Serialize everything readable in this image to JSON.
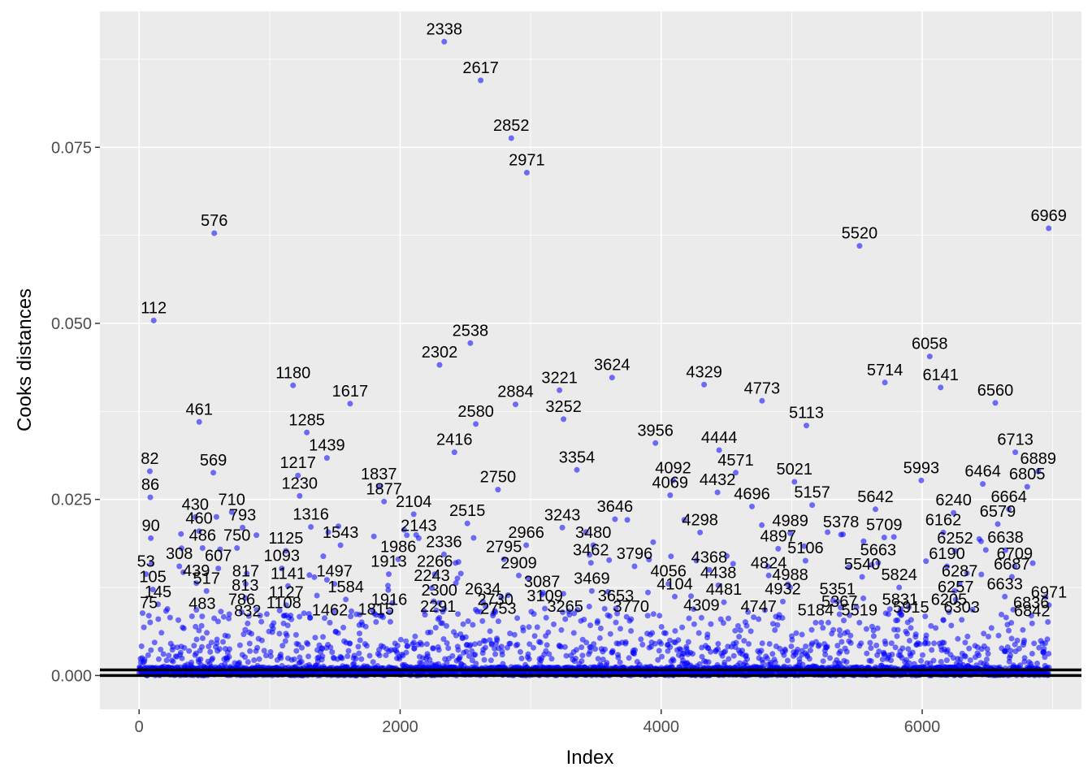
{
  "chart_data": {
    "type": "scatter",
    "title": "",
    "xlabel": "Index",
    "ylabel": "Cooks distances",
    "xlim": [
      -300,
      7220
    ],
    "ylim": [
      -0.0048,
      0.0943
    ],
    "x_ticks": [
      0,
      2000,
      4000,
      6000
    ],
    "x_tick_labels": [
      "0",
      "2000",
      "4000",
      "6000"
    ],
    "y_ticks": [
      0.0,
      0.025,
      0.05,
      0.075
    ],
    "y_tick_labels": [
      "0.000",
      "0.025",
      "0.050",
      "0.075"
    ],
    "grid": true,
    "point_color": "#0000FF",
    "threshold_lines": [
      0.0,
      0.0008
    ],
    "n_points": 6971,
    "labeled_points": [
      {
        "x": 2338,
        "y": 0.09,
        "label": "2338"
      },
      {
        "x": 2617,
        "y": 0.0845,
        "label": "2617"
      },
      {
        "x": 2852,
        "y": 0.0763,
        "label": "2852"
      },
      {
        "x": 2971,
        "y": 0.0714,
        "label": "2971"
      },
      {
        "x": 576,
        "y": 0.0628,
        "label": "576"
      },
      {
        "x": 6969,
        "y": 0.0635,
        "label": "6969"
      },
      {
        "x": 5520,
        "y": 0.061,
        "label": "5520"
      },
      {
        "x": 112,
        "y": 0.0504,
        "label": "112"
      },
      {
        "x": 2538,
        "y": 0.0472,
        "label": "2538"
      },
      {
        "x": 2302,
        "y": 0.0441,
        "label": "2302"
      },
      {
        "x": 6058,
        "y": 0.0453,
        "label": "6058"
      },
      {
        "x": 3624,
        "y": 0.0423,
        "label": "3624"
      },
      {
        "x": 3221,
        "y": 0.0405,
        "label": "3221"
      },
      {
        "x": 5714,
        "y": 0.0416,
        "label": "5714"
      },
      {
        "x": 1180,
        "y": 0.0412,
        "label": "1180"
      },
      {
        "x": 4329,
        "y": 0.0413,
        "label": "4329"
      },
      {
        "x": 6141,
        "y": 0.0409,
        "label": "6141"
      },
      {
        "x": 4773,
        "y": 0.039,
        "label": "4773"
      },
      {
        "x": 1617,
        "y": 0.0386,
        "label": "1617"
      },
      {
        "x": 2884,
        "y": 0.0385,
        "label": "2884"
      },
      {
        "x": 6560,
        "y": 0.0387,
        "label": "6560"
      },
      {
        "x": 3252,
        "y": 0.0364,
        "label": "3252"
      },
      {
        "x": 461,
        "y": 0.036,
        "label": "461"
      },
      {
        "x": 2580,
        "y": 0.0357,
        "label": "2580"
      },
      {
        "x": 5113,
        "y": 0.0355,
        "label": "5113"
      },
      {
        "x": 1285,
        "y": 0.0345,
        "label": "1285"
      },
      {
        "x": 3956,
        "y": 0.033,
        "label": "3956"
      },
      {
        "x": 4444,
        "y": 0.032,
        "label": "4444"
      },
      {
        "x": 6713,
        "y": 0.0317,
        "label": "6713"
      },
      {
        "x": 2416,
        "y": 0.0317,
        "label": "2416"
      },
      {
        "x": 1439,
        "y": 0.0309,
        "label": "1439"
      },
      {
        "x": 3354,
        "y": 0.0292,
        "label": "3354"
      },
      {
        "x": 4571,
        "y": 0.0288,
        "label": "4571"
      },
      {
        "x": 6889,
        "y": 0.029,
        "label": "6889"
      },
      {
        "x": 82,
        "y": 0.029,
        "label": "82"
      },
      {
        "x": 569,
        "y": 0.0288,
        "label": "569"
      },
      {
        "x": 1217,
        "y": 0.0284,
        "label": "1217"
      },
      {
        "x": 4092,
        "y": 0.0277,
        "label": "4092"
      },
      {
        "x": 5021,
        "y": 0.0275,
        "label": "5021"
      },
      {
        "x": 5993,
        "y": 0.0277,
        "label": "5993"
      },
      {
        "x": 1837,
        "y": 0.0268,
        "label": "1837"
      },
      {
        "x": 6464,
        "y": 0.0272,
        "label": "6464"
      },
      {
        "x": 6805,
        "y": 0.0268,
        "label": "6805"
      },
      {
        "x": 4432,
        "y": 0.026,
        "label": "4432"
      },
      {
        "x": 2750,
        "y": 0.0264,
        "label": "2750"
      },
      {
        "x": 1230,
        "y": 0.0255,
        "label": "1230"
      },
      {
        "x": 4069,
        "y": 0.0256,
        "label": "4069"
      },
      {
        "x": 86,
        "y": 0.0253,
        "label": "86"
      },
      {
        "x": 1877,
        "y": 0.0247,
        "label": "1877"
      },
      {
        "x": 4696,
        "y": 0.024,
        "label": "4696"
      },
      {
        "x": 5157,
        "y": 0.0242,
        "label": "5157"
      },
      {
        "x": 710,
        "y": 0.0232,
        "label": "710"
      },
      {
        "x": 5642,
        "y": 0.0236,
        "label": "5642"
      },
      {
        "x": 6664,
        "y": 0.0236,
        "label": "6664"
      },
      {
        "x": 6240,
        "y": 0.0231,
        "label": "6240"
      },
      {
        "x": 2104,
        "y": 0.0229,
        "label": "2104"
      },
      {
        "x": 430,
        "y": 0.0225,
        "label": "430"
      },
      {
        "x": 3646,
        "y": 0.0222,
        "label": "3646"
      },
      {
        "x": 2515,
        "y": 0.0216,
        "label": "2515"
      },
      {
        "x": 1316,
        "y": 0.0211,
        "label": "1316"
      },
      {
        "x": 793,
        "y": 0.021,
        "label": "793"
      },
      {
        "x": 6579,
        "y": 0.0215,
        "label": "6579"
      },
      {
        "x": 3243,
        "y": 0.021,
        "label": "3243"
      },
      {
        "x": 460,
        "y": 0.0205,
        "label": "460"
      },
      {
        "x": 4298,
        "y": 0.0203,
        "label": "4298"
      },
      {
        "x": 4989,
        "y": 0.0202,
        "label": "4989"
      },
      {
        "x": 5378,
        "y": 0.02,
        "label": "5378"
      },
      {
        "x": 6162,
        "y": 0.0203,
        "label": "6162"
      },
      {
        "x": 2143,
        "y": 0.0195,
        "label": "2143"
      },
      {
        "x": 5709,
        "y": 0.0196,
        "label": "5709"
      },
      {
        "x": 90,
        "y": 0.0195,
        "label": "90"
      },
      {
        "x": 3480,
        "y": 0.0185,
        "label": "3480"
      },
      {
        "x": 2966,
        "y": 0.0185,
        "label": "2966"
      },
      {
        "x": 1543,
        "y": 0.0185,
        "label": "1543"
      },
      {
        "x": 486,
        "y": 0.0181,
        "label": "486"
      },
      {
        "x": 750,
        "y": 0.0181,
        "label": "750"
      },
      {
        "x": 4897,
        "y": 0.018,
        "label": "4897"
      },
      {
        "x": 1125,
        "y": 0.0177,
        "label": "1125"
      },
      {
        "x": 6638,
        "y": 0.0178,
        "label": "6638"
      },
      {
        "x": 6252,
        "y": 0.0177,
        "label": "6252"
      },
      {
        "x": 2336,
        "y": 0.0172,
        "label": "2336"
      },
      {
        "x": 1986,
        "y": 0.0165,
        "label": "1986"
      },
      {
        "x": 2795,
        "y": 0.0165,
        "label": "2795"
      },
      {
        "x": 5106,
        "y": 0.0163,
        "label": "5106"
      },
      {
        "x": 3462,
        "y": 0.016,
        "label": "3462"
      },
      {
        "x": 5663,
        "y": 0.016,
        "label": "5663"
      },
      {
        "x": 3796,
        "y": 0.0155,
        "label": "3796"
      },
      {
        "x": 6709,
        "y": 0.0155,
        "label": "6709"
      },
      {
        "x": 308,
        "y": 0.0155,
        "label": "308"
      },
      {
        "x": 6190,
        "y": 0.0155,
        "label": "6190"
      },
      {
        "x": 607,
        "y": 0.0152,
        "label": "607"
      },
      {
        "x": 1093,
        "y": 0.0152,
        "label": "1093"
      },
      {
        "x": 4368,
        "y": 0.015,
        "label": "4368"
      },
      {
        "x": 53,
        "y": 0.0144,
        "label": "53"
      },
      {
        "x": 2266,
        "y": 0.0144,
        "label": "2266"
      },
      {
        "x": 1913,
        "y": 0.0144,
        "label": "1913"
      },
      {
        "x": 4824,
        "y": 0.0142,
        "label": "4824"
      },
      {
        "x": 2909,
        "y": 0.0142,
        "label": "2909"
      },
      {
        "x": 5540,
        "y": 0.014,
        "label": "5540"
      },
      {
        "x": 6687,
        "y": 0.014,
        "label": "6687"
      },
      {
        "x": 439,
        "y": 0.0131,
        "label": "439"
      },
      {
        "x": 6287,
        "y": 0.013,
        "label": "6287"
      },
      {
        "x": 817,
        "y": 0.013,
        "label": "817"
      },
      {
        "x": 1497,
        "y": 0.013,
        "label": "1497"
      },
      {
        "x": 4056,
        "y": 0.013,
        "label": "4056"
      },
      {
        "x": 4438,
        "y": 0.0128,
        "label": "4438"
      },
      {
        "x": 1141,
        "y": 0.0127,
        "label": "1141"
      },
      {
        "x": 4988,
        "y": 0.0125,
        "label": "4988"
      },
      {
        "x": 2243,
        "y": 0.0124,
        "label": "2243"
      },
      {
        "x": 5824,
        "y": 0.0125,
        "label": "5824"
      },
      {
        "x": 105,
        "y": 0.0122,
        "label": "105"
      },
      {
        "x": 517,
        "y": 0.012,
        "label": "517"
      },
      {
        "x": 3469,
        "y": 0.012,
        "label": "3469"
      },
      {
        "x": 3087,
        "y": 0.0115,
        "label": "3087"
      },
      {
        "x": 4104,
        "y": 0.0112,
        "label": "4104"
      },
      {
        "x": 6633,
        "y": 0.0112,
        "label": "6633"
      },
      {
        "x": 813,
        "y": 0.011,
        "label": "813"
      },
      {
        "x": 6257,
        "y": 0.0108,
        "label": "6257"
      },
      {
        "x": 1584,
        "y": 0.0108,
        "label": "1584"
      },
      {
        "x": 4932,
        "y": 0.0105,
        "label": "4932"
      },
      {
        "x": 2634,
        "y": 0.0105,
        "label": "2634"
      },
      {
        "x": 4481,
        "y": 0.0104,
        "label": "4481"
      },
      {
        "x": 5351,
        "y": 0.0105,
        "label": "5351"
      },
      {
        "x": 2300,
        "y": 0.0103,
        "label": "2300"
      },
      {
        "x": 145,
        "y": 0.0101,
        "label": "145"
      },
      {
        "x": 1127,
        "y": 0.01,
        "label": "1127"
      },
      {
        "x": 6971,
        "y": 0.01,
        "label": "6971"
      },
      {
        "x": 3653,
        "y": 0.0095,
        "label": "3653"
      },
      {
        "x": 3109,
        "y": 0.0095,
        "label": "3109"
      },
      {
        "x": 786,
        "y": 0.009,
        "label": "786"
      },
      {
        "x": 2730,
        "y": 0.009,
        "label": "2730"
      },
      {
        "x": 1916,
        "y": 0.009,
        "label": "1916"
      },
      {
        "x": 5831,
        "y": 0.009,
        "label": "5831"
      },
      {
        "x": 6205,
        "y": 0.009,
        "label": "6205"
      },
      {
        "x": 5367,
        "y": 0.0087,
        "label": "5367"
      },
      {
        "x": 1108,
        "y": 0.0085,
        "label": "1108"
      },
      {
        "x": 6836,
        "y": 0.0085,
        "label": "6836"
      },
      {
        "x": 75,
        "y": 0.0085,
        "label": "75"
      },
      {
        "x": 483,
        "y": 0.0084,
        "label": "483"
      },
      {
        "x": 4309,
        "y": 0.0082,
        "label": "4309"
      },
      {
        "x": 2291,
        "y": 0.008,
        "label": "2291"
      },
      {
        "x": 3265,
        "y": 0.008,
        "label": "3265"
      },
      {
        "x": 3770,
        "y": 0.008,
        "label": "3770"
      },
      {
        "x": 4747,
        "y": 0.008,
        "label": "4747"
      },
      {
        "x": 5915,
        "y": 0.0079,
        "label": "5915"
      },
      {
        "x": 6303,
        "y": 0.0079,
        "label": "6303"
      },
      {
        "x": 2753,
        "y": 0.0077,
        "label": "2753"
      },
      {
        "x": 1815,
        "y": 0.0076,
        "label": "1815"
      },
      {
        "x": 1462,
        "y": 0.0075,
        "label": "1462"
      },
      {
        "x": 5184,
        "y": 0.0075,
        "label": "5184"
      },
      {
        "x": 5519,
        "y": 0.0075,
        "label": "5519"
      },
      {
        "x": 832,
        "y": 0.0074,
        "label": "832"
      },
      {
        "x": 6842,
        "y": 0.0074,
        "label": "6842"
      }
    ]
  }
}
